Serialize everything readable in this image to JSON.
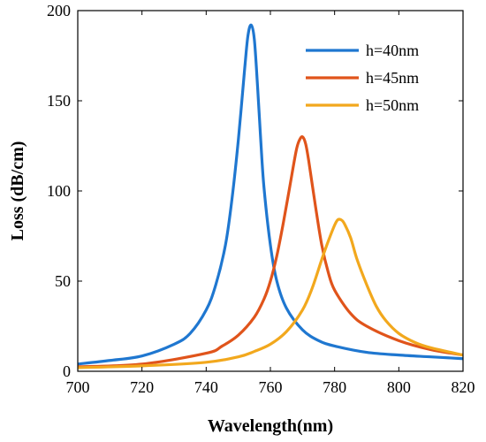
{
  "chart_data": {
    "type": "line",
    "title": "",
    "xlabel": "Wavelength(nm)",
    "ylabel": "Loss (dB/cm)",
    "xlim": [
      700,
      820
    ],
    "ylim": [
      0,
      200
    ],
    "xticks": [
      700,
      720,
      740,
      760,
      780,
      800,
      820
    ],
    "yticks": [
      0,
      50,
      100,
      150,
      200
    ],
    "grid": false,
    "legend_position": "top-right",
    "series": [
      {
        "name": "h=40nm",
        "color": "#1f77d0",
        "x": [
          700,
          710,
          720,
          730,
          735,
          740,
          743,
          746,
          748,
          750,
          752,
          753,
          754,
          755,
          756,
          757,
          758,
          760,
          762,
          765,
          770,
          775,
          780,
          790,
          800,
          810,
          820
        ],
        "y": [
          4,
          6,
          8.5,
          15,
          21,
          34,
          48,
          70,
          95,
          128,
          168,
          186,
          192,
          184,
          158,
          128,
          102,
          70,
          50,
          35,
          23,
          17,
          14,
          10.5,
          9,
          8,
          7
        ]
      },
      {
        "name": "h=45nm",
        "color": "#e0541b",
        "x": [
          700,
          720,
          740,
          745,
          750,
          755,
          758,
          760,
          762,
          764,
          766,
          768,
          769,
          770,
          771,
          772,
          774,
          776,
          778,
          780,
          785,
          790,
          800,
          810,
          820
        ],
        "y": [
          2.5,
          4,
          10,
          14,
          20,
          30,
          40,
          50,
          64,
          82,
          102,
          122,
          128,
          130,
          126,
          116,
          92,
          70,
          55,
          45,
          32,
          25,
          17,
          12,
          9
        ]
      },
      {
        "name": "h=50nm",
        "color": "#f2a81d",
        "x": [
          700,
          720,
          740,
          750,
          755,
          760,
          765,
          770,
          773,
          776,
          778,
          780,
          781,
          782,
          783,
          785,
          787,
          790,
          793,
          796,
          800,
          805,
          810,
          820
        ],
        "y": [
          2,
          3,
          5,
          8,
          11,
          15,
          22,
          34,
          46,
          62,
          72,
          81,
          84,
          84,
          82,
          74,
          62,
          48,
          36,
          28,
          21,
          16,
          13,
          9
        ]
      }
    ]
  }
}
